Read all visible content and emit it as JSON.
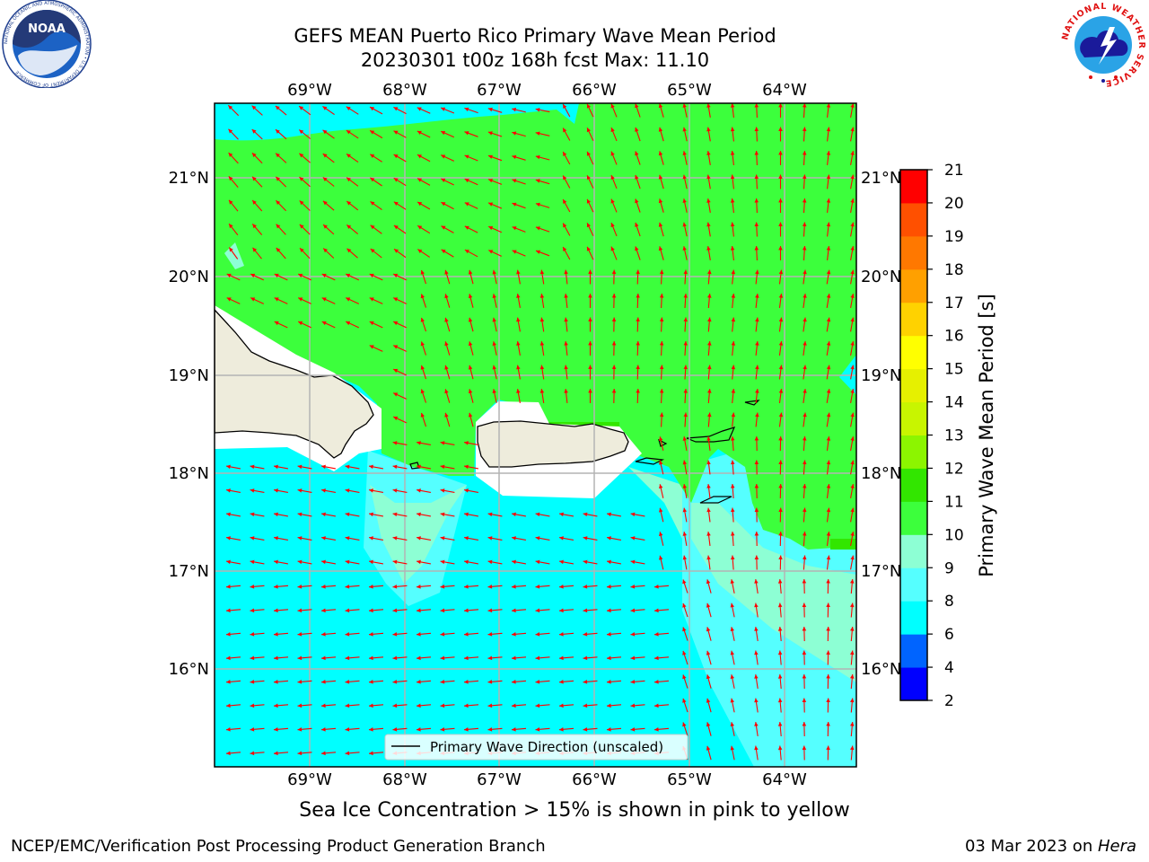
{
  "title": {
    "line1": "GEFS MEAN Puerto Rico Primary Wave Mean Period",
    "line2": "20230301 t00z 168h fcst   Max: 11.10"
  },
  "map": {
    "lon_labels": [
      "69°W",
      "68°W",
      "67°W",
      "66°W",
      "65°W",
      "64°W"
    ],
    "lat_labels": [
      "21°N",
      "20°N",
      "19°N",
      "18°N",
      "17°N",
      "16°N"
    ],
    "legend_label": "Primary Wave Direction (unscaled)",
    "arrow_color": "#ff0000",
    "land_color": "#eeecdc"
  },
  "colorbar": {
    "label": "Primary Wave Mean Period [s]",
    "ticks": [
      "2",
      "4",
      "6",
      "8",
      "9",
      "10",
      "11",
      "12",
      "13",
      "14",
      "15",
      "16",
      "17",
      "18",
      "19",
      "20",
      "21"
    ],
    "colors": [
      "#0000ff",
      "#0064ff",
      "#00ffff",
      "#55ffff",
      "#8dffd4",
      "#3cff3c",
      "#32e600",
      "#8cf500",
      "#c8f500",
      "#e6f000",
      "#ffff00",
      "#ffd200",
      "#ffa000",
      "#ff7800",
      "#ff5000",
      "#ff0000"
    ]
  },
  "caption": "Sea Ice Concentration > 15% is shown in pink to yellow",
  "footer": {
    "left": "NCEP/EMC/Verification Post Processing Product Generation Branch",
    "right_prefix": "03 Mar 2023 on ",
    "right_host": "Hera"
  },
  "logos": {
    "noaa_text": "NOAA",
    "noaa_ring_text": "NATIONAL OCEANIC AND ATMOSPHERIC ADMINISTRATION • U.S. DEPARTMENT OF COMMERCE",
    "nws_ring_text": "NATIONAL WEATHER SERVICE"
  }
}
